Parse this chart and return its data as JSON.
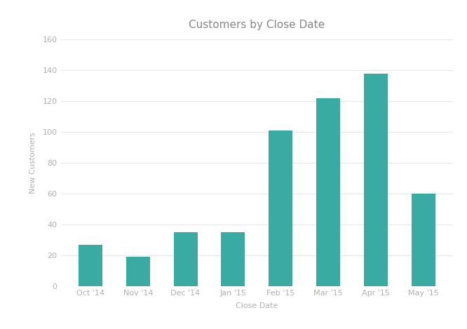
{
  "title": "Customers by Close Date",
  "xlabel": "Close Date",
  "ylabel": "New Customers",
  "categories": [
    "Oct '14",
    "Nov '14",
    "Dec '14",
    "Jan '15",
    "Feb '15",
    "Mar '15",
    "Apr '15",
    "May '15"
  ],
  "values": [
    27,
    19,
    35,
    35,
    101,
    122,
    138,
    60
  ],
  "bar_color": "#3aaba3",
  "background_color": "#ffffff",
  "grid_color": "#e8e8e8",
  "text_color": "#b0b0b0",
  "title_color": "#888888",
  "ylim": [
    0,
    160
  ],
  "yticks": [
    0,
    20,
    40,
    60,
    80,
    100,
    120,
    140,
    160
  ],
  "bar_width": 0.5,
  "title_fontsize": 11,
  "axis_label_fontsize": 8,
  "tick_fontsize": 8
}
